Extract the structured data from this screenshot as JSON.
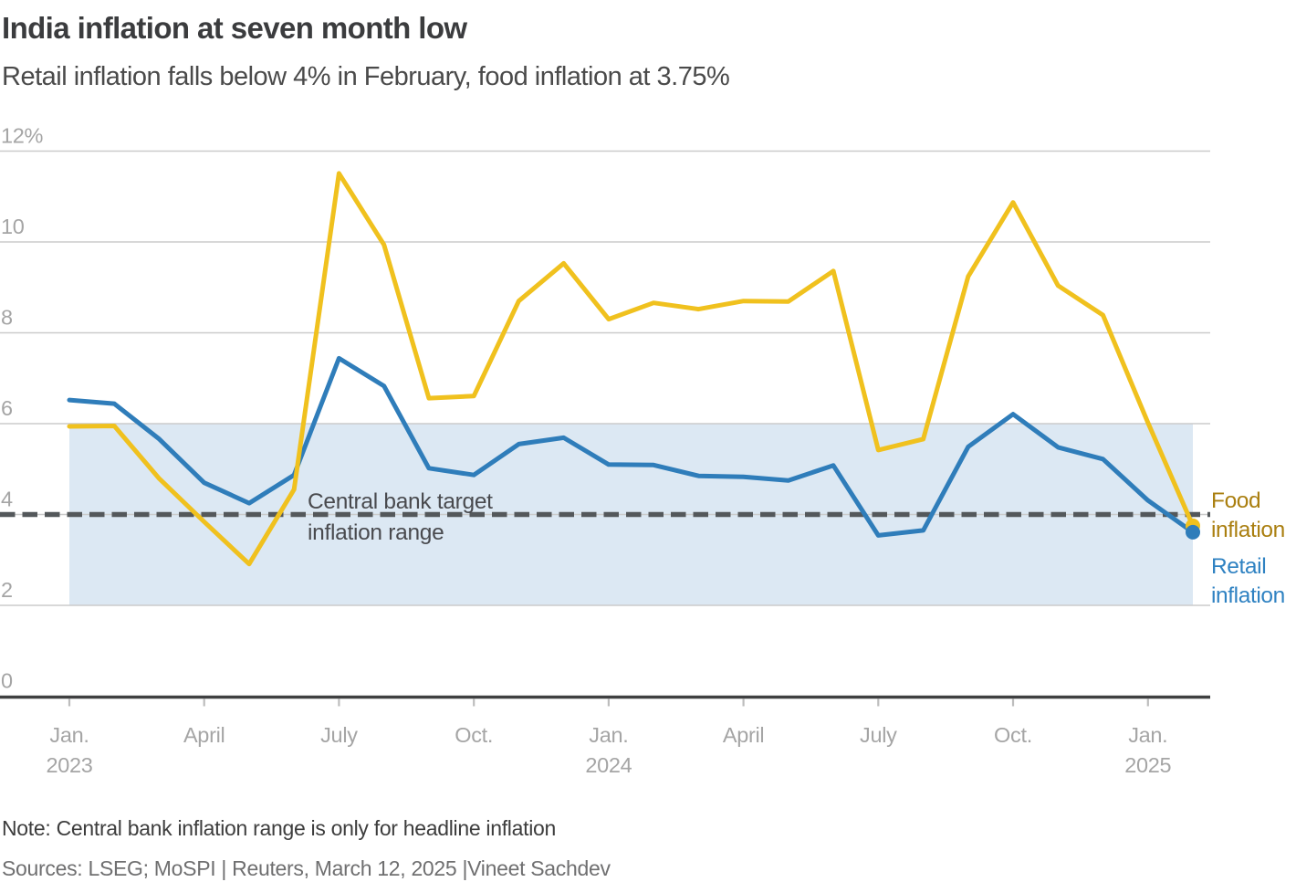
{
  "header": {
    "title": "India inflation at seven month low",
    "subtitle": "Retail inflation falls below 4% in February, food inflation at 3.75%"
  },
  "footer": {
    "note": "Note: Central bank inflation range is only for headline inflation",
    "sources": "Sources: LSEG; MoSPI | Reuters, March 12, 2025 |Vineet Sachdev"
  },
  "chart_data": {
    "type": "line",
    "title": "India inflation at seven month low",
    "subtitle": "Retail inflation falls below 4% in February, food inflation at 3.75%",
    "x": [
      "Jan 2023",
      "Feb 2023",
      "Mar 2023",
      "Apr 2023",
      "May 2023",
      "Jun 2023",
      "Jul 2023",
      "Aug 2023",
      "Sep 2023",
      "Oct 2023",
      "Nov 2023",
      "Dec 2023",
      "Jan 2024",
      "Feb 2024",
      "Mar 2024",
      "Apr 2024",
      "May 2024",
      "Jun 2024",
      "Jul 2024",
      "Aug 2024",
      "Sep 2024",
      "Oct 2024",
      "Nov 2024",
      "Dec 2024",
      "Jan 2025",
      "Feb 2025"
    ],
    "series": [
      {
        "name": "Food inflation",
        "label_lines": [
          "Food",
          "inflation"
        ],
        "color": "#f0c11e",
        "label_color": "#aa7f10",
        "values": [
          5.94,
          5.95,
          4.79,
          3.84,
          2.91,
          4.55,
          11.51,
          9.94,
          6.56,
          6.61,
          8.7,
          9.53,
          8.3,
          8.66,
          8.52,
          8.7,
          8.69,
          9.36,
          5.42,
          5.66,
          9.24,
          10.87,
          9.04,
          8.39,
          6.02,
          3.75
        ]
      },
      {
        "name": "Retail inflation",
        "label_lines": [
          "Retail",
          "inflation"
        ],
        "color": "#2f7dba",
        "label_color": "#2f82c2",
        "values": [
          6.52,
          6.44,
          5.66,
          4.7,
          4.25,
          4.87,
          7.44,
          6.83,
          5.02,
          4.87,
          5.55,
          5.69,
          5.1,
          5.09,
          4.85,
          4.83,
          4.75,
          5.08,
          3.54,
          3.65,
          5.49,
          6.21,
          5.48,
          5.22,
          4.31,
          3.61
        ]
      }
    ],
    "ylim": [
      0,
      12
    ],
    "yticks": [
      {
        "value": 12,
        "label": "12%"
      },
      {
        "value": 10,
        "label": "10"
      },
      {
        "value": 8,
        "label": "8"
      },
      {
        "value": 6,
        "label": "6"
      },
      {
        "value": 4,
        "label": "4"
      },
      {
        "value": 2,
        "label": "2"
      },
      {
        "value": 0,
        "label": "0"
      }
    ],
    "xticks": [
      {
        "index": 0,
        "label": "Jan.",
        "year": "2023"
      },
      {
        "index": 3,
        "label": "April",
        "year": ""
      },
      {
        "index": 6,
        "label": "July",
        "year": ""
      },
      {
        "index": 9,
        "label": "Oct.",
        "year": ""
      },
      {
        "index": 12,
        "label": "Jan.",
        "year": "2024"
      },
      {
        "index": 15,
        "label": "April",
        "year": ""
      },
      {
        "index": 18,
        "label": "July",
        "year": ""
      },
      {
        "index": 21,
        "label": "Oct.",
        "year": ""
      },
      {
        "index": 24,
        "label": "Jan.",
        "year": "2025"
      }
    ],
    "target_band": {
      "from": 2,
      "to": 6,
      "color": "#dce8f3"
    },
    "target_line": {
      "value": 4,
      "color": "#54585b",
      "label_lines": [
        "Central bank target",
        "inflation range"
      ]
    },
    "grid": true,
    "legend_position": "right",
    "colors": {
      "gridline": "#cbcbcb",
      "axis": "#3f4041",
      "tick": "#bdbdbd",
      "tick_label": "#a5a5a5",
      "annotation": "#494a4e"
    }
  }
}
